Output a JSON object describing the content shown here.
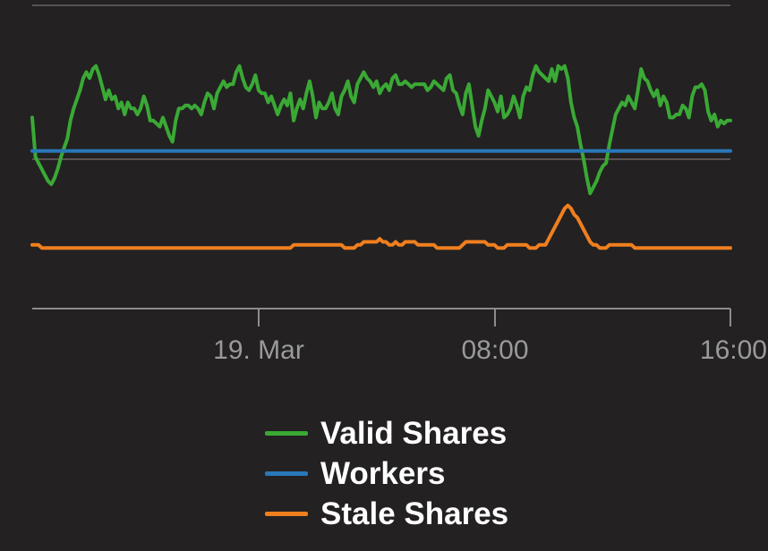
{
  "chart_data": {
    "type": "line",
    "title": "",
    "xlabel": "",
    "ylabel": "",
    "x_ticks": [
      "19. Mar",
      "08:00",
      "16:00"
    ],
    "grid": "horizontal",
    "legend_position": "bottom-center",
    "series": [
      {
        "name": "Valid Shares",
        "color": "#3aa935",
        "values": [
          0.63,
          0.5,
          0.48,
          0.46,
          0.44,
          0.42,
          0.41,
          0.43,
          0.46,
          0.5,
          0.53,
          0.56,
          0.62,
          0.66,
          0.69,
          0.72,
          0.76,
          0.78,
          0.76,
          0.79,
          0.8,
          0.77,
          0.73,
          0.69,
          0.72,
          0.69,
          0.7,
          0.66,
          0.68,
          0.64,
          0.68,
          0.66,
          0.66,
          0.64,
          0.66,
          0.7,
          0.67,
          0.62,
          0.62,
          0.61,
          0.6,
          0.63,
          0.6,
          0.57,
          0.55,
          0.62,
          0.66,
          0.66,
          0.67,
          0.67,
          0.66,
          0.67,
          0.66,
          0.64,
          0.68,
          0.71,
          0.7,
          0.66,
          0.71,
          0.73,
          0.75,
          0.73,
          0.74,
          0.74,
          0.78,
          0.8,
          0.76,
          0.73,
          0.72,
          0.74,
          0.77,
          0.72,
          0.71,
          0.71,
          0.68,
          0.7,
          0.67,
          0.64,
          0.67,
          0.69,
          0.67,
          0.71,
          0.62,
          0.66,
          0.69,
          0.66,
          0.71,
          0.75,
          0.7,
          0.63,
          0.68,
          0.66,
          0.66,
          0.68,
          0.71,
          0.66,
          0.64,
          0.7,
          0.72,
          0.75,
          0.7,
          0.68,
          0.74,
          0.76,
          0.78,
          0.76,
          0.75,
          0.73,
          0.75,
          0.71,
          0.73,
          0.74,
          0.72,
          0.76,
          0.77,
          0.74,
          0.74,
          0.75,
          0.74,
          0.73,
          0.74,
          0.74,
          0.74,
          0.74,
          0.72,
          0.73,
          0.75,
          0.74,
          0.73,
          0.72,
          0.76,
          0.77,
          0.72,
          0.71,
          0.67,
          0.64,
          0.71,
          0.74,
          0.67,
          0.6,
          0.57,
          0.62,
          0.66,
          0.72,
          0.7,
          0.68,
          0.65,
          0.7,
          0.63,
          0.64,
          0.66,
          0.7,
          0.67,
          0.63,
          0.7,
          0.73,
          0.72,
          0.77,
          0.8,
          0.78,
          0.77,
          0.76,
          0.75,
          0.79,
          0.75,
          0.8,
          0.79,
          0.8,
          0.76,
          0.68,
          0.63,
          0.6,
          0.54,
          0.49,
          0.43,
          0.38,
          0.4,
          0.42,
          0.45,
          0.47,
          0.48,
          0.54,
          0.59,
          0.64,
          0.66,
          0.68,
          0.67,
          0.7,
          0.68,
          0.66,
          0.72,
          0.79,
          0.76,
          0.75,
          0.72,
          0.7,
          0.72,
          0.67,
          0.7,
          0.68,
          0.63,
          0.63,
          0.64,
          0.64,
          0.67,
          0.66,
          0.63,
          0.7,
          0.73,
          0.73,
          0.74,
          0.72,
          0.65,
          0.62,
          0.64,
          0.6,
          0.62,
          0.61,
          0.62,
          0.62
        ]
      },
      {
        "name": "Workers",
        "color": "#2878b8",
        "values": [
          0.52
        ]
      },
      {
        "name": "Stale Shares",
        "color": "#f07f1e",
        "values": [
          0.21,
          0.21,
          0.21,
          0.2,
          0.2,
          0.2,
          0.2,
          0.2,
          0.2,
          0.2,
          0.2,
          0.2,
          0.2,
          0.2,
          0.2,
          0.2,
          0.2,
          0.2,
          0.2,
          0.2,
          0.2,
          0.2,
          0.2,
          0.2,
          0.2,
          0.2,
          0.2,
          0.2,
          0.2,
          0.2,
          0.2,
          0.2,
          0.2,
          0.2,
          0.2,
          0.2,
          0.2,
          0.2,
          0.2,
          0.2,
          0.2,
          0.2,
          0.2,
          0.2,
          0.2,
          0.2,
          0.2,
          0.2,
          0.2,
          0.2,
          0.2,
          0.2,
          0.2,
          0.2,
          0.2,
          0.2,
          0.2,
          0.2,
          0.2,
          0.2,
          0.2,
          0.2,
          0.2,
          0.2,
          0.2,
          0.2,
          0.2,
          0.2,
          0.2,
          0.2,
          0.2,
          0.2,
          0.2,
          0.2,
          0.2,
          0.2,
          0.2,
          0.2,
          0.2,
          0.2,
          0.2,
          0.2,
          0.21,
          0.21,
          0.21,
          0.21,
          0.21,
          0.21,
          0.21,
          0.21,
          0.21,
          0.21,
          0.21,
          0.21,
          0.21,
          0.21,
          0.21,
          0.21,
          0.2,
          0.2,
          0.2,
          0.2,
          0.21,
          0.21,
          0.22,
          0.22,
          0.22,
          0.22,
          0.22,
          0.23,
          0.22,
          0.22,
          0.21,
          0.21,
          0.22,
          0.21,
          0.21,
          0.22,
          0.22,
          0.22,
          0.22,
          0.21,
          0.21,
          0.21,
          0.21,
          0.21,
          0.21,
          0.2,
          0.2,
          0.2,
          0.2,
          0.2,
          0.2,
          0.2,
          0.2,
          0.21,
          0.22,
          0.22,
          0.22,
          0.22,
          0.22,
          0.22,
          0.22,
          0.21,
          0.21,
          0.21,
          0.2,
          0.2,
          0.2,
          0.21,
          0.21,
          0.21,
          0.21,
          0.21,
          0.21,
          0.21,
          0.2,
          0.2,
          0.2,
          0.21,
          0.21,
          0.21,
          0.23,
          0.25,
          0.27,
          0.29,
          0.31,
          0.33,
          0.34,
          0.33,
          0.31,
          0.3,
          0.28,
          0.26,
          0.24,
          0.22,
          0.21,
          0.21,
          0.2,
          0.2,
          0.2,
          0.21,
          0.21,
          0.21,
          0.21,
          0.21,
          0.21,
          0.21,
          0.21,
          0.2,
          0.2,
          0.2,
          0.2,
          0.2,
          0.2,
          0.2,
          0.2,
          0.2,
          0.2,
          0.2,
          0.2,
          0.2,
          0.2,
          0.2,
          0.2,
          0.2,
          0.2,
          0.2,
          0.2,
          0.2,
          0.2,
          0.2,
          0.2,
          0.2,
          0.2,
          0.2,
          0.2,
          0.2,
          0.2,
          0.2
        ]
      }
    ]
  }
}
